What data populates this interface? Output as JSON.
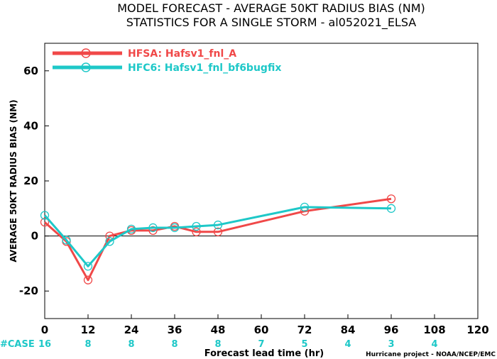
{
  "chart_data": {
    "type": "line",
    "title_line1": "MODEL FORECAST - AVERAGE 50KT RADIUS BIAS (NM)",
    "title_line2": "STATISTICS FOR A SINGLE STORM - al052021_ELSA",
    "xlabel": "Forecast lead time (hr)",
    "ylabel": "AVERAGE 50KT RADIUS BIAS (NM)",
    "xlim": [
      0,
      120
    ],
    "ylim": [
      -30,
      70
    ],
    "xticks": [
      0,
      12,
      24,
      36,
      48,
      60,
      72,
      84,
      96,
      108,
      120
    ],
    "yticks": [
      -20,
      0,
      20,
      40,
      60
    ],
    "zero_line": true,
    "grid": false,
    "legend_position": "top-left",
    "series": [
      {
        "name": "HFSA: Hafsv1_fnl_A",
        "color": "#f04848",
        "x": [
          0,
          6,
          12,
          18,
          24,
          30,
          36,
          42,
          48,
          72,
          96
        ],
        "y": [
          5,
          -2,
          -16,
          0,
          2,
          2,
          3.5,
          1.5,
          1.5,
          9,
          13.5
        ]
      },
      {
        "name": "HFC6: Hafsv1_fnl_bf6bugfix",
        "color": "#1ec8c8",
        "x": [
          0,
          6,
          12,
          18,
          24,
          30,
          36,
          42,
          48,
          72,
          96
        ],
        "y": [
          7.5,
          -1.5,
          -11,
          -2,
          2.5,
          3,
          3,
          3.5,
          4,
          10.5,
          10
        ]
      }
    ],
    "case_label": "#CASE",
    "case_counts": [
      {
        "x": 0,
        "n": "16"
      },
      {
        "x": 12,
        "n": "8"
      },
      {
        "x": 24,
        "n": "8"
      },
      {
        "x": 36,
        "n": "8"
      },
      {
        "x": 48,
        "n": "8"
      },
      {
        "x": 60,
        "n": "7"
      },
      {
        "x": 72,
        "n": "5"
      },
      {
        "x": 84,
        "n": "4"
      },
      {
        "x": 96,
        "n": "3"
      },
      {
        "x": 108,
        "n": "4"
      }
    ],
    "case_color": "#1ec8c8",
    "credit": "Hurricane project - NOAA/NCEP/EMC"
  }
}
